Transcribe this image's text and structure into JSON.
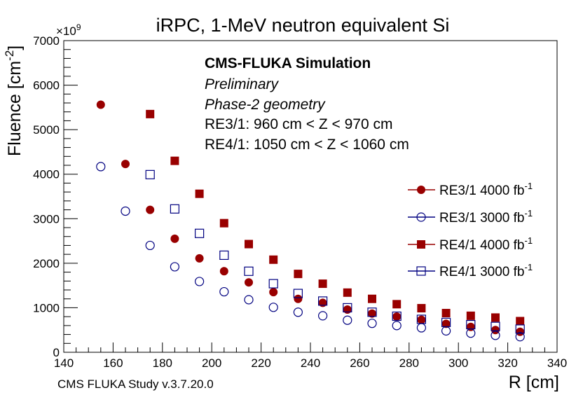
{
  "chart_data": {
    "type": "scatter",
    "title": "iRPC, 1-MeV neutron equivalent Si",
    "xlabel": "R [cm]",
    "ylabel": "Fluence [cm",
    "ylabel_sup": "-2",
    "ylabel_close": "]",
    "y_multiplier": "×10",
    "y_multiplier_exp": "9",
    "xlim": [
      140,
      340
    ],
    "ylim": [
      0,
      7000
    ],
    "x_ticks": [
      140,
      160,
      180,
      200,
      220,
      240,
      260,
      280,
      300,
      320,
      340
    ],
    "y_ticks": [
      0,
      1000,
      2000,
      3000,
      4000,
      5000,
      6000,
      7000
    ],
    "annotations": {
      "sim": "CMS-FLUKA Simulation",
      "prelim": "Preliminary",
      "geometry": "Phase-2 geometry",
      "re3": "RE3/1:  960 cm < Z < 970 cm",
      "re4": "RE4/1: 1050 cm < Z < 1060 cm"
    },
    "legend_position": "right",
    "series": [
      {
        "name": "RE3/1 4000 fb",
        "sup": "-1",
        "marker": "circle-filled",
        "color": "#990000",
        "x": [
          155,
          165,
          175,
          185,
          195,
          205,
          215,
          225,
          235,
          245,
          255,
          265,
          275,
          285,
          295,
          305,
          315,
          325
        ],
        "y": [
          5560,
          4230,
          3200,
          2550,
          2110,
          1820,
          1570,
          1350,
          1200,
          1110,
          960,
          870,
          800,
          730,
          640,
          570,
          500,
          460
        ]
      },
      {
        "name": "RE3/1 3000 fb",
        "sup": "-1",
        "marker": "circle-open",
        "color": "#000080",
        "x": [
          155,
          165,
          175,
          185,
          195,
          205,
          215,
          225,
          235,
          245,
          255,
          265,
          275,
          285,
          295,
          305,
          315,
          325
        ],
        "y": [
          4170,
          3170,
          2400,
          1920,
          1590,
          1360,
          1180,
          1010,
          900,
          820,
          720,
          650,
          600,
          550,
          480,
          430,
          380,
          350
        ]
      },
      {
        "name": "RE4/1 4000 fb",
        "sup": "-1",
        "marker": "square-filled",
        "color": "#990000",
        "x": [
          175,
          185,
          195,
          205,
          215,
          225,
          235,
          245,
          255,
          265,
          275,
          285,
          295,
          305,
          315,
          325
        ],
        "y": [
          5350,
          4300,
          3560,
          2900,
          2430,
          2080,
          1760,
          1540,
          1340,
          1200,
          1080,
          990,
          880,
          820,
          780,
          700
        ]
      },
      {
        "name": "RE4/1 3000 fb",
        "sup": "-1",
        "marker": "square-open",
        "color": "#000080",
        "x": [
          175,
          185,
          195,
          205,
          215,
          225,
          235,
          245,
          255,
          265,
          275,
          285,
          295,
          305,
          315,
          325
        ],
        "y": [
          3990,
          3220,
          2670,
          2180,
          1820,
          1540,
          1320,
          1150,
          1000,
          900,
          810,
          740,
          670,
          620,
          580,
          520
        ]
      }
    ]
  },
  "footer": "CMS FLUKA Study v.3.7.20.0"
}
